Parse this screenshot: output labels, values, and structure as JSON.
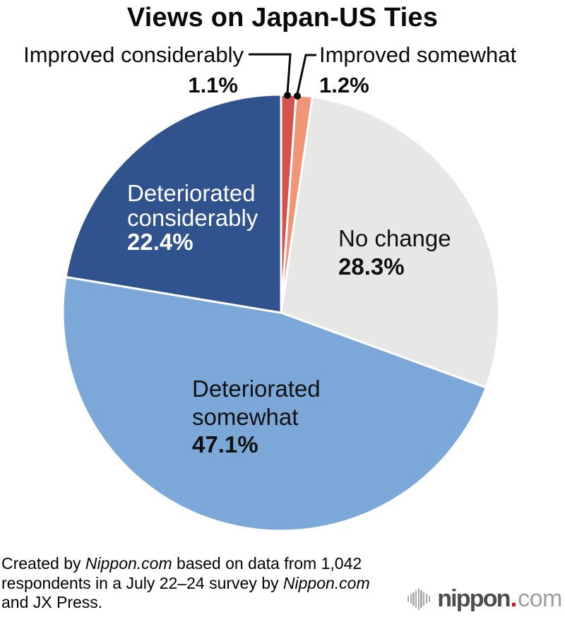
{
  "title": "Views on Japan-US Ties",
  "chart_data": {
    "type": "pie",
    "title": "Views on Japan-US Ties",
    "start_angle_deg": -90,
    "direction": "clockwise",
    "legend_position": "labels-on-chart",
    "segments": [
      {
        "id": "improved-considerably",
        "label": "Improved considerably",
        "value": 1.1,
        "display": "1.1%",
        "color": "#d5534d",
        "label_placement": "callout-left"
      },
      {
        "id": "improved-somewhat",
        "label": "Improved somewhat",
        "value": 1.2,
        "display": "1.2%",
        "color": "#f09577",
        "label_placement": "callout-right"
      },
      {
        "id": "no-change",
        "label": "No change",
        "value": 28.3,
        "display": "28.3%",
        "color": "#e7e7e5",
        "label_placement": "inside"
      },
      {
        "id": "deteriorated-somewhat",
        "label": "Deteriorated somewhat",
        "value": 47.1,
        "display": "47.1%",
        "color": "#7ca8d9",
        "label_placement": "inside"
      },
      {
        "id": "deteriorated-considerably",
        "label": "Deteriorated considerably",
        "value": 22.4,
        "display": "22.4%",
        "color": "#31538d",
        "label_placement": "inside",
        "label_color": "#ffffff"
      }
    ]
  },
  "footer": {
    "line1_pre": "Created by ",
    "line1_italic": "Nippon.com",
    "line1_post": " based on data from 1,042",
    "line2_pre": "respondents in a July 22–24 survey by ",
    "line2_italic": "Nippon.com",
    "line3": "and JX Press."
  },
  "logo": {
    "brand": "nippon",
    "dot": ".",
    "tld": "com",
    "dot_color": "#e60012"
  }
}
